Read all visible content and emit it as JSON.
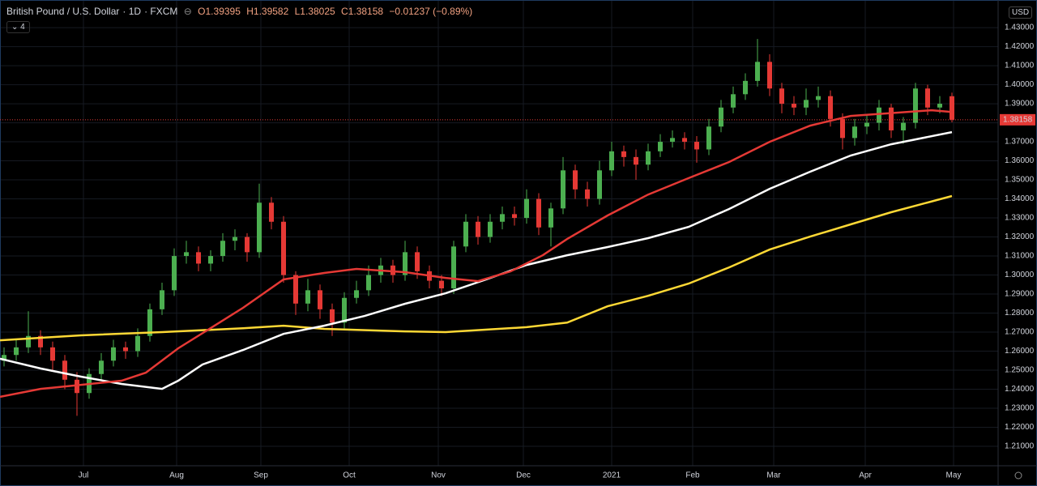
{
  "chart_data": {
    "type": "candlestick",
    "symbol": "British Pound / U.S. Dollar",
    "interval": "1D",
    "source": "FXCM",
    "quote": [
      "O1.39395",
      "H1.39582",
      "L1.38025",
      "C1.38158",
      "−0.01237 (−0.89%)"
    ],
    "indicator_count": "4",
    "currency": "USD",
    "up_color": "#4caf50",
    "down_color": "#e53935",
    "grid": true,
    "xlim": [
      0,
      246.4
    ],
    "xticks": [
      {
        "value": 20.6,
        "label": "Jul"
      },
      {
        "value": 43.6,
        "label": "Aug"
      },
      {
        "value": 64.4,
        "label": "Sep"
      },
      {
        "value": 86.2,
        "label": "Oct"
      },
      {
        "value": 108.2,
        "label": "Nov"
      },
      {
        "value": 129.2,
        "label": "Dec"
      },
      {
        "value": 151,
        "label": "2021"
      },
      {
        "value": 171,
        "label": "Feb"
      },
      {
        "value": 191,
        "label": "Mar"
      },
      {
        "value": 213.6,
        "label": "Apr"
      },
      {
        "value": 235.4,
        "label": "May"
      }
    ],
    "ylim": [
      1.1998,
      1.4445
    ],
    "yticks": [
      {
        "value": 1.21,
        "label": "1.21000"
      },
      {
        "value": 1.22,
        "label": "1.22000"
      },
      {
        "value": 1.23,
        "label": "1.23000"
      },
      {
        "value": 1.24,
        "label": "1.24000"
      },
      {
        "value": 1.25,
        "label": "1.25000"
      },
      {
        "value": 1.26,
        "label": "1.26000"
      },
      {
        "value": 1.27,
        "label": "1.27000"
      },
      {
        "value": 1.28,
        "label": "1.28000"
      },
      {
        "value": 1.29,
        "label": "1.29000"
      },
      {
        "value": 1.3,
        "label": "1.30000"
      },
      {
        "value": 1.31,
        "label": "1.31000"
      },
      {
        "value": 1.32,
        "label": "1.32000"
      },
      {
        "value": 1.33,
        "label": "1.33000"
      },
      {
        "value": 1.34,
        "label": "1.34000"
      },
      {
        "value": 1.35,
        "label": "1.35000"
      },
      {
        "value": 1.36,
        "label": "1.36000"
      },
      {
        "value": 1.37,
        "label": "1.37000"
      },
      {
        "value": 1.38,
        "label": "1.38000"
      },
      {
        "value": 1.39,
        "label": "1.39000"
      },
      {
        "value": 1.4,
        "label": "1.40000"
      },
      {
        "value": 1.41,
        "label": "1.41000"
      },
      {
        "value": 1.42,
        "label": "1.42000"
      },
      {
        "value": 1.43,
        "label": "1.43000"
      }
    ],
    "last_price": {
      "value": 1.38158,
      "label": "1.38158"
    },
    "x": [
      1,
      4,
      7,
      10,
      13,
      16,
      19,
      22,
      25,
      28,
      31,
      34,
      37,
      40,
      43,
      46,
      49,
      52,
      55,
      58,
      61,
      64,
      67,
      70,
      73,
      76,
      79,
      82,
      85,
      88,
      91,
      94,
      97,
      100,
      103,
      106,
      109,
      112,
      115,
      118,
      121,
      124,
      127,
      130,
      133,
      136,
      139,
      142,
      145,
      148,
      151,
      154,
      157,
      160,
      163,
      166,
      169,
      172,
      175,
      178,
      181,
      184,
      187,
      190,
      193,
      196,
      199,
      202,
      205,
      208,
      211,
      214,
      217,
      220,
      223,
      226,
      229,
      232,
      235
    ],
    "open": [
      1.255,
      1.258,
      1.262,
      1.268,
      1.262,
      1.255,
      1.245,
      1.238,
      1.248,
      1.255,
      1.262,
      1.26,
      1.268,
      1.282,
      1.292,
      1.31,
      1.312,
      1.306,
      1.31,
      1.318,
      1.32,
      1.312,
      1.338,
      1.328,
      1.3,
      1.285,
      1.292,
      1.282,
      1.275,
      1.288,
      1.292,
      1.3,
      1.305,
      1.3,
      1.312,
      1.302,
      1.297,
      1.293,
      1.315,
      1.328,
      1.32,
      1.328,
      1.332,
      1.33,
      1.34,
      1.325,
      1.335,
      1.355,
      1.345,
      1.34,
      1.355,
      1.365,
      1.362,
      1.358,
      1.365,
      1.37,
      1.372,
      1.37,
      1.366,
      1.378,
      1.388,
      1.395,
      1.402,
      1.412,
      1.398,
      1.39,
      1.388,
      1.392,
      1.394,
      1.382,
      1.372,
      1.378,
      1.38,
      1.388,
      1.376,
      1.38,
      1.398,
      1.388,
      1.39395
    ],
    "high": [
      1.262,
      1.266,
      1.281,
      1.271,
      1.265,
      1.258,
      1.249,
      1.251,
      1.259,
      1.266,
      1.265,
      1.272,
      1.285,
      1.296,
      1.314,
      1.318,
      1.315,
      1.313,
      1.322,
      1.324,
      1.322,
      1.348,
      1.341,
      1.331,
      1.302,
      1.298,
      1.295,
      1.285,
      1.291,
      1.297,
      1.305,
      1.309,
      1.308,
      1.318,
      1.315,
      1.305,
      1.3,
      1.318,
      1.332,
      1.331,
      1.332,
      1.336,
      1.336,
      1.345,
      1.343,
      1.338,
      1.362,
      1.358,
      1.349,
      1.36,
      1.37,
      1.368,
      1.366,
      1.369,
      1.374,
      1.376,
      1.375,
      1.373,
      1.382,
      1.392,
      1.399,
      1.406,
      1.424,
      1.416,
      1.401,
      1.394,
      1.398,
      1.399,
      1.397,
      1.385,
      1.382,
      1.384,
      1.392,
      1.39,
      1.383,
      1.401,
      1.4,
      1.394,
      1.39582
    ],
    "low": [
      1.252,
      1.255,
      1.259,
      1.258,
      1.25,
      1.24,
      1.226,
      1.235,
      1.245,
      1.252,
      1.256,
      1.257,
      1.265,
      1.279,
      1.289,
      1.306,
      1.302,
      1.302,
      1.307,
      1.313,
      1.307,
      1.309,
      1.324,
      1.296,
      1.279,
      1.281,
      1.277,
      1.268,
      1.272,
      1.285,
      1.289,
      1.296,
      1.296,
      1.297,
      1.298,
      1.293,
      1.289,
      1.29,
      1.312,
      1.316,
      1.317,
      1.324,
      1.326,
      1.327,
      1.321,
      1.315,
      1.332,
      1.34,
      1.336,
      1.337,
      1.352,
      1.357,
      1.35,
      1.355,
      1.362,
      1.367,
      1.366,
      1.359,
      1.363,
      1.375,
      1.385,
      1.392,
      1.399,
      1.394,
      1.385,
      1.384,
      1.384,
      1.388,
      1.378,
      1.366,
      1.368,
      1.374,
      1.376,
      1.372,
      1.369,
      1.377,
      1.384,
      1.385,
      1.38025
    ],
    "close": [
      1.258,
      1.262,
      1.268,
      1.262,
      1.255,
      1.245,
      1.238,
      1.248,
      1.255,
      1.262,
      1.26,
      1.268,
      1.282,
      1.292,
      1.31,
      1.312,
      1.306,
      1.31,
      1.318,
      1.32,
      1.312,
      1.338,
      1.328,
      1.3,
      1.285,
      1.292,
      1.282,
      1.275,
      1.288,
      1.292,
      1.3,
      1.305,
      1.3,
      1.312,
      1.302,
      1.297,
      1.293,
      1.315,
      1.328,
      1.32,
      1.328,
      1.332,
      1.33,
      1.34,
      1.325,
      1.335,
      1.355,
      1.345,
      1.34,
      1.355,
      1.365,
      1.362,
      1.358,
      1.365,
      1.37,
      1.372,
      1.37,
      1.366,
      1.378,
      1.388,
      1.395,
      1.402,
      1.412,
      1.398,
      1.39,
      1.388,
      1.392,
      1.394,
      1.382,
      1.372,
      1.378,
      1.38,
      1.388,
      1.376,
      1.38,
      1.398,
      1.388,
      1.39,
      1.38158
    ],
    "lines": [
      {
        "color": "#fdd835",
        "x": [
          0,
          20,
          40,
          60,
          70,
          80,
          100,
          110,
          130,
          140,
          150,
          160,
          170,
          180,
          190,
          200,
          210,
          220,
          235
        ],
        "values": [
          1.2657,
          1.2683,
          1.27,
          1.272,
          1.2734,
          1.2717,
          1.2704,
          1.27,
          1.2726,
          1.275,
          1.2836,
          1.2891,
          1.2955,
          1.304,
          1.3134,
          1.3202,
          1.3266,
          1.333,
          1.3415
        ]
      },
      {
        "color": "#ffffff",
        "x": [
          0,
          10,
          20,
          30,
          40,
          44,
          50,
          60,
          70,
          80,
          90,
          100,
          110,
          120,
          130,
          140,
          150,
          160,
          170,
          180,
          190,
          200,
          210,
          220,
          235
        ],
        "values": [
          1.256,
          1.2509,
          1.2466,
          1.2428,
          1.2402,
          1.2445,
          1.253,
          1.2606,
          1.2691,
          1.2734,
          1.2785,
          1.2849,
          1.2904,
          1.2977,
          1.3053,
          1.3104,
          1.3147,
          1.3194,
          1.3253,
          1.3347,
          1.3453,
          1.3543,
          1.3628,
          1.3687,
          1.3751
        ]
      },
      {
        "color": "#e53935",
        "x": [
          0,
          10,
          20,
          30,
          36,
          44,
          52,
          60,
          70,
          80,
          88,
          100,
          110,
          118,
          126,
          134,
          140,
          150,
          160,
          170,
          180,
          190,
          200,
          210,
          220,
          230,
          235
        ],
        "values": [
          1.236,
          1.2402,
          1.2423,
          1.2445,
          1.2487,
          1.2615,
          1.2721,
          1.2828,
          1.2977,
          1.3011,
          1.3032,
          1.3015,
          1.2985,
          1.2968,
          1.3019,
          1.3104,
          1.3189,
          1.3313,
          1.3423,
          1.3509,
          1.3594,
          1.37,
          1.3785,
          1.3836,
          1.3851,
          1.3866,
          1.3857
        ]
      }
    ]
  }
}
